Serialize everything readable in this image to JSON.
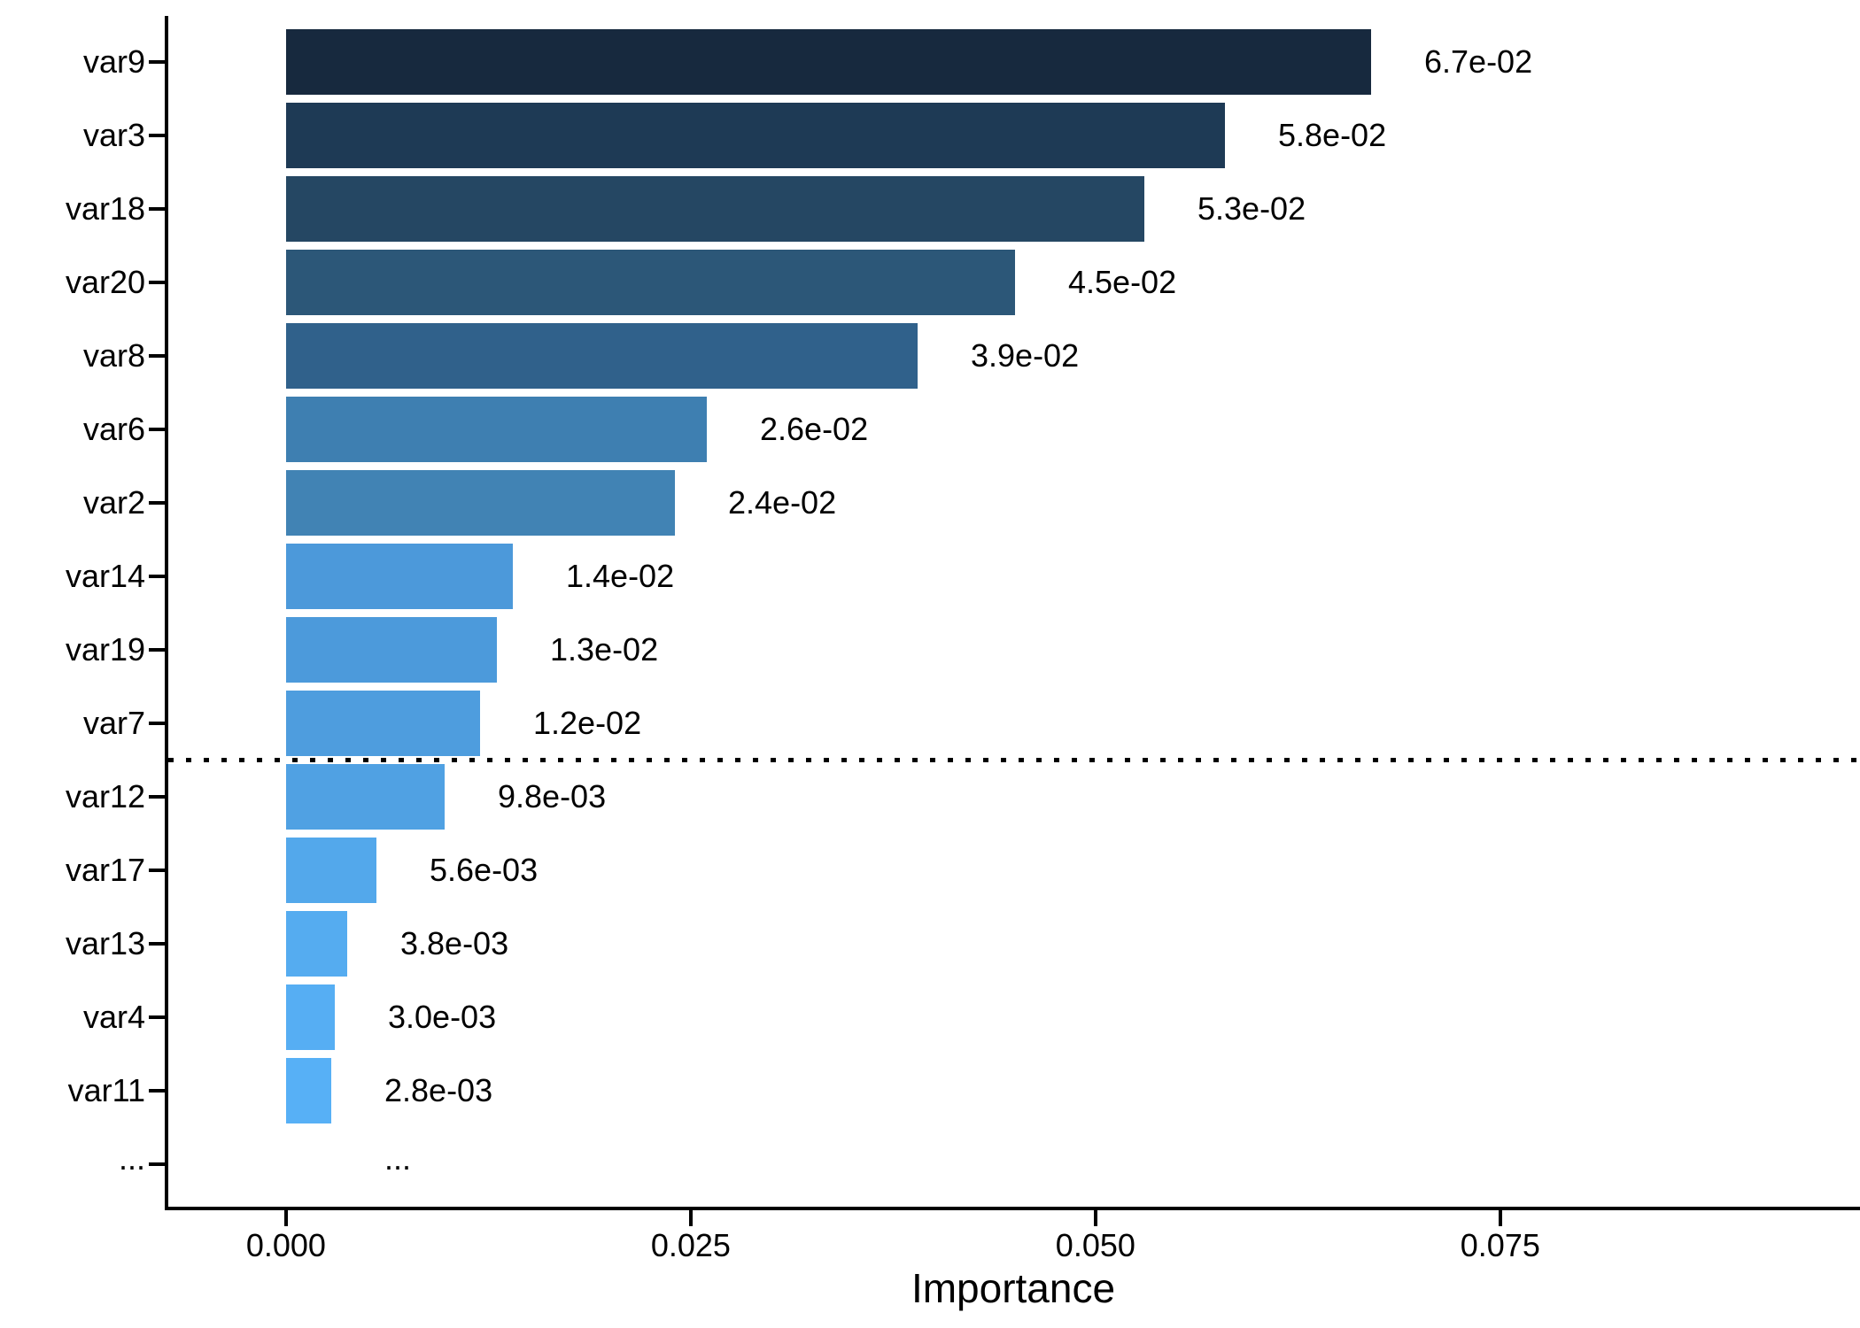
{
  "chart_data": {
    "type": "bar",
    "orientation": "horizontal",
    "title": "",
    "xlabel": "Importance",
    "ylabel": "",
    "background": "#FFFFFF",
    "axis_color": "#000000",
    "text_color": "#000000",
    "grid": false,
    "legend": false,
    "xlim": [
      -0.00738,
      0.09722
    ],
    "x_tick_values": [
      0,
      0.025,
      0.05,
      0.075
    ],
    "x_tick_labels": [
      "0.000",
      "0.025",
      "0.050",
      "0.075"
    ],
    "categories": [
      "var9",
      "var3",
      "var18",
      "var20",
      "var8",
      "var6",
      "var2",
      "var14",
      "var19",
      "var7",
      "var12",
      "var17",
      "var13",
      "var4",
      "var11"
    ],
    "values": [
      0.067,
      0.058,
      0.053,
      0.045,
      0.039,
      0.026,
      0.024,
      0.014,
      0.013,
      0.012,
      0.0098,
      0.0056,
      0.0038,
      0.003,
      0.0028
    ],
    "value_labels": [
      "6.7e-02",
      "5.8e-02",
      "5.3e-02",
      "4.5e-02",
      "3.9e-02",
      "2.6e-02",
      "2.4e-02",
      "1.4e-02",
      "1.3e-02",
      "1.2e-02",
      "9.8e-03",
      "5.6e-03",
      "3.8e-03",
      "3.0e-03",
      "2.8e-03"
    ],
    "bar_colors": [
      "#17293E",
      "#1E3A55",
      "#254763",
      "#2C5778",
      "#30618B",
      "#3E7FB1",
      "#4183B4",
      "#4C99DA",
      "#4C9ADB",
      "#4E9DDE",
      "#50A1E3",
      "#53A8EB",
      "#55ACF0",
      "#56AEF3",
      "#57B0F6"
    ],
    "ellipsis_label": "...",
    "threshold_line": {
      "style": "dotted",
      "color": "#000000",
      "after_category": "var7",
      "before_category": "var12"
    }
  }
}
